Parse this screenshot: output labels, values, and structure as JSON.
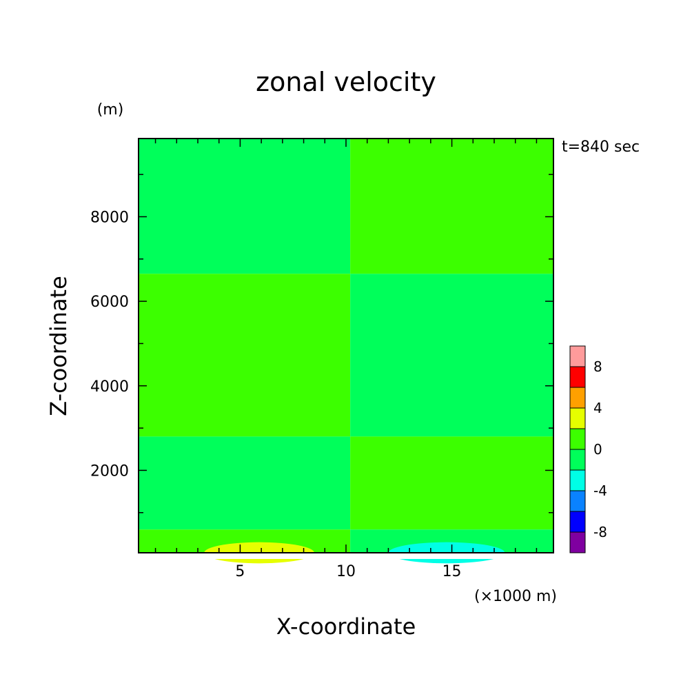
{
  "chart_data": {
    "type": "heatmap",
    "title": "zonal velocity",
    "xlabel": "X-coordinate",
    "ylabel": "Z-coordinate",
    "x_unit": "(×1000 m)",
    "y_unit": "(m)",
    "annotation": "t=840 sec",
    "xlim": [
      0.2,
      19.8
    ],
    "ylim": [
      50,
      9850
    ],
    "x_ticks": [
      5,
      10,
      15
    ],
    "y_ticks": [
      2000,
      4000,
      6000,
      8000
    ],
    "grid": false,
    "colorbar": {
      "placement": "right",
      "levels": [
        -10,
        -8,
        -6,
        -4,
        -2,
        0,
        2,
        4,
        6,
        8,
        10
      ],
      "colors": [
        "#7f00a0",
        "#0000ff",
        "#0a82ff",
        "#00ffe6",
        "#00ff5a",
        "#3cff00",
        "#e6ff00",
        "#ffa000",
        "#ff0000",
        "#ff9b9b"
      ],
      "tick_labels": [
        "-8",
        "-4",
        "0",
        "4",
        "8"
      ],
      "tick_values": [
        -8,
        -4,
        0,
        4,
        8
      ]
    },
    "field_regions": [
      {
        "value_range": [
          -2,
          0
        ],
        "x_range": [
          0.2,
          10.2
        ],
        "z_range": [
          6650,
          9850
        ]
      },
      {
        "value_range": [
          0,
          2
        ],
        "x_range": [
          10.2,
          19.8
        ],
        "z_range": [
          6650,
          9850
        ]
      },
      {
        "value_range": [
          0,
          2
        ],
        "x_range": [
          0.2,
          10.2
        ],
        "z_range": [
          2800,
          6650
        ]
      },
      {
        "value_range": [
          -2,
          0
        ],
        "x_range": [
          10.2,
          19.8
        ],
        "z_range": [
          2800,
          6650
        ]
      },
      {
        "value_range": [
          -2,
          0
        ],
        "x_range": [
          0.2,
          10.2
        ],
        "z_range": [
          600,
          2800
        ]
      },
      {
        "value_range": [
          0,
          2
        ],
        "x_range": [
          10.2,
          19.8
        ],
        "z_range": [
          600,
          2800
        ]
      },
      {
        "value_range": [
          0,
          2
        ],
        "x_range": [
          0.2,
          10.2
        ],
        "z_range": [
          50,
          600
        ]
      },
      {
        "value_range": [
          -2,
          0
        ],
        "x_range": [
          10.2,
          19.8
        ],
        "z_range": [
          50,
          600
        ]
      },
      {
        "value_range": [
          2,
          4
        ],
        "x_range": [
          3.3,
          8.5
        ],
        "z_range": [
          50,
          300
        ]
      },
      {
        "value_range": [
          -4,
          -2
        ],
        "x_range": [
          12,
          17.5
        ],
        "z_range": [
          50,
          300
        ]
      }
    ]
  }
}
